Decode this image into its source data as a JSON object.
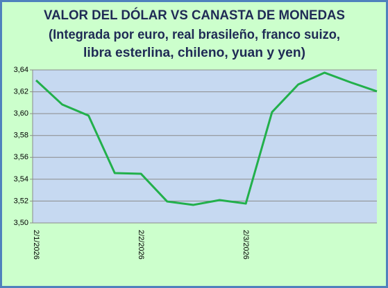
{
  "chart_data": {
    "type": "line",
    "title": "VALOR DEL DÓLAR VS CANASTA DE MONEDAS",
    "subtitle": [
      "(Integrada por euro, real brasileño, franco suizo,",
      "libra esterlina, chileno, yuan y yen)"
    ],
    "categories": [
      "2/1/2026",
      null,
      null,
      null,
      "2/2/2026",
      null,
      null,
      null,
      "2/3/2026",
      null,
      null,
      null,
      null,
      null
    ],
    "series": [
      {
        "name": "Valor del dólar",
        "color": "#22b04b",
        "values": [
          3.6305,
          3.6083,
          3.5982,
          3.5456,
          3.545,
          3.5196,
          3.5165,
          3.5209,
          3.5177,
          3.6014,
          3.6267,
          3.6375,
          3.6286,
          3.6204
        ]
      }
    ],
    "ylim": [
      3.5,
      3.64
    ],
    "yticks": [
      {
        "value": 3.5,
        "label": "3,50"
      },
      {
        "value": 3.52,
        "label": "3,52"
      },
      {
        "value": 3.54,
        "label": "3,54"
      },
      {
        "value": 3.56,
        "label": "3,56"
      },
      {
        "value": 3.58,
        "label": "3,58"
      },
      {
        "value": 3.6,
        "label": "3,60"
      },
      {
        "value": 3.62,
        "label": "3,62"
      },
      {
        "value": 3.64,
        "label": "3,64"
      }
    ],
    "grid": true
  }
}
